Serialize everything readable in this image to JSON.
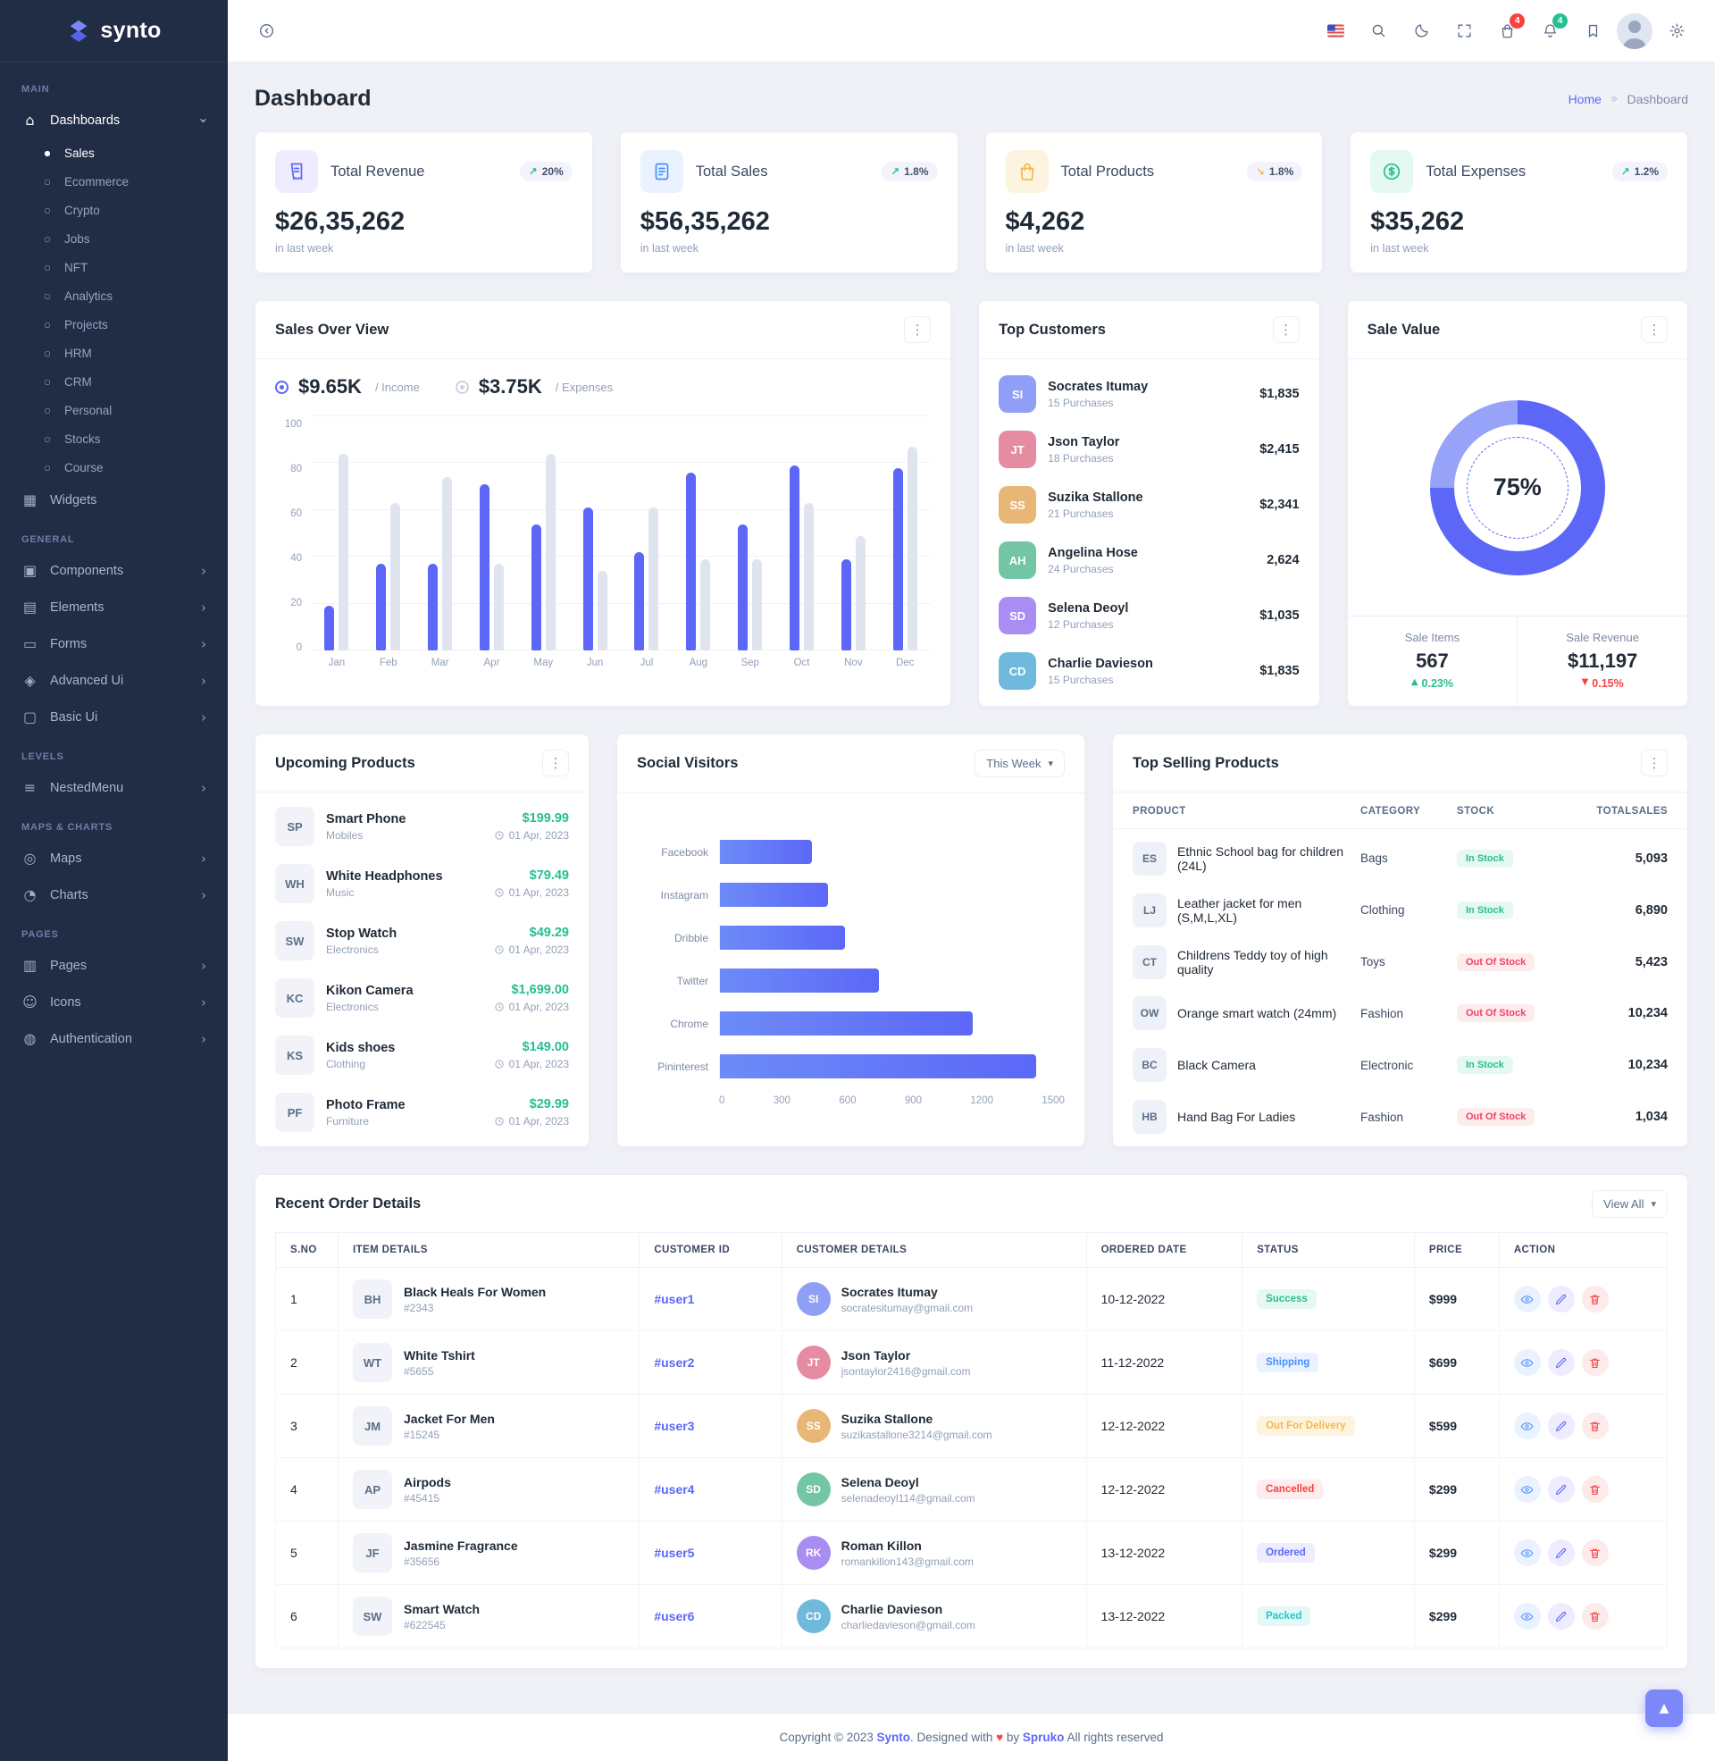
{
  "theme": {
    "primary": "#5c67f7",
    "success": "#26bf94",
    "danger": "#fb4242",
    "warning": "#f5b849",
    "info": "#478ffc",
    "teal": "#29c7c7",
    "sidebar_bg": "#212c45",
    "body_bg": "#f0f1f7"
  },
  "brand": {
    "name": "synto"
  },
  "topbar": {
    "cart_badge": "4",
    "bell_badge": "4"
  },
  "page": {
    "title": "Dashboard",
    "breadcrumb": {
      "home": "Home",
      "sep": "»",
      "current": "Dashboard"
    }
  },
  "icon_glyphs": {
    "home-icon": "⌂",
    "widgets-icon": "▦",
    "components-icon": "▣",
    "elements-icon": "▤",
    "forms-icon": "▭",
    "advanced-ui-icon": "◈",
    "basic-ui-icon": "▢",
    "nested-menu-icon": "≡",
    "maps-icon": "◎",
    "charts-icon": "◔",
    "pages-icon": "▥",
    "icons-icon": "☺",
    "auth-icon": "◍",
    "kebab-icon": "⋮",
    "chevron-right-icon": "›",
    "chevron-down-icon": "▾",
    "bullet-icon": "○",
    "bullet-active-icon": "●",
    "caret-up-icon": "▲",
    "caret-down-icon": "▼",
    "arrow-up-icon": "▲"
  },
  "sidebar": {
    "sections": [
      {
        "caption": "MAIN",
        "items": [
          {
            "label": "Dashboards",
            "icon": "home-icon",
            "chevron": "down",
            "active": true,
            "children": [
              {
                "label": "Sales",
                "active": true
              },
              {
                "label": "Ecommerce"
              },
              {
                "label": "Crypto"
              },
              {
                "label": "Jobs"
              },
              {
                "label": "NFT"
              },
              {
                "label": "Analytics"
              },
              {
                "label": "Projects"
              },
              {
                "label": "HRM"
              },
              {
                "label": "CRM"
              },
              {
                "label": "Personal"
              },
              {
                "label": "Stocks"
              },
              {
                "label": "Course"
              }
            ]
          },
          {
            "label": "Widgets",
            "icon": "widgets-icon"
          }
        ]
      },
      {
        "caption": "GENERAL",
        "items": [
          {
            "label": "Components",
            "icon": "components-icon",
            "chevron": "right"
          },
          {
            "label": "Elements",
            "icon": "elements-icon",
            "chevron": "right"
          },
          {
            "label": "Forms",
            "icon": "forms-icon",
            "chevron": "right"
          },
          {
            "label": "Advanced Ui",
            "icon": "advanced-ui-icon",
            "chevron": "right"
          },
          {
            "label": "Basic Ui",
            "icon": "basic-ui-icon",
            "chevron": "right"
          }
        ]
      },
      {
        "caption": "LEVELS",
        "items": [
          {
            "label": "NestedMenu",
            "icon": "nested-menu-icon",
            "chevron": "right"
          }
        ]
      },
      {
        "caption": "MAPS & CHARTS",
        "items": [
          {
            "label": "Maps",
            "icon": "maps-icon",
            "chevron": "right"
          },
          {
            "label": "Charts",
            "icon": "charts-icon",
            "chevron": "right"
          }
        ]
      },
      {
        "caption": "PAGES",
        "items": [
          {
            "label": "Pages",
            "icon": "pages-icon",
            "chevron": "right"
          },
          {
            "label": "Icons",
            "icon": "icons-icon",
            "chevron": "right"
          },
          {
            "label": "Authentication",
            "icon": "auth-icon",
            "chevron": "right"
          }
        ]
      }
    ]
  },
  "stat_cards": [
    {
      "title": "Total Revenue",
      "value": "$26,35,262",
      "period": "in last week",
      "change": "20%",
      "arrow": "↗",
      "trend": "up",
      "icon": "revenue-icon",
      "icon_bg": "#eeecfe",
      "icon_fg": "#5c67f7"
    },
    {
      "title": "Total Sales",
      "value": "$56,35,262",
      "period": "in last week",
      "change": "1.8%",
      "arrow": "↗",
      "trend": "up",
      "icon": "sales-icon",
      "icon_bg": "#e9f2fe",
      "icon_fg": "#478ffc"
    },
    {
      "title": "Total Products",
      "value": "$4,262",
      "period": "in last week",
      "change": "1.8%",
      "arrow": "↘",
      "trend": "down",
      "icon": "products-icon",
      "icon_bg": "#fdf4e0",
      "icon_fg": "#f5b849"
    },
    {
      "title": "Total Expenses",
      "value": "$35,262",
      "period": "in last week",
      "change": "1.2%",
      "arrow": "↗",
      "trend": "up",
      "icon": "expenses-icon",
      "icon_bg": "#e6f8f2",
      "icon_fg": "#26bf94"
    }
  ],
  "sales_overview": {
    "title": "Sales Over View",
    "income_value": "$9.65K",
    "income_label": "/ Income",
    "expenses_value": "$3.75K",
    "expenses_label": "/ Expenses",
    "chart_data": {
      "type": "bar",
      "categories": [
        "Jan",
        "Feb",
        "Mar",
        "Apr",
        "May",
        "Jun",
        "Jul",
        "Aug",
        "Sep",
        "Oct",
        "Nov",
        "Dec"
      ],
      "series": [
        {
          "name": "Income",
          "values": [
            19,
            37,
            37,
            71,
            54,
            61,
            42,
            76,
            54,
            79,
            39,
            78
          ]
        },
        {
          "name": "Expenses",
          "values": [
            84,
            63,
            74,
            37,
            84,
            34,
            61,
            39,
            39,
            63,
            49,
            87
          ]
        }
      ],
      "ylim": [
        0,
        100
      ],
      "yticks": [
        0,
        20,
        40,
        60,
        80,
        100
      ]
    }
  },
  "top_customers": {
    "title": "Top Customers",
    "items": [
      {
        "name": "Socrates Itumay",
        "purchases": "15 Purchases",
        "amount": "$1,835",
        "initials": "SI"
      },
      {
        "name": "Json Taylor",
        "purchases": "18 Purchases",
        "amount": "$2,415",
        "initials": "JT"
      },
      {
        "name": "Suzika Stallone",
        "purchases": "21 Purchases",
        "amount": "$2,341",
        "initials": "SS"
      },
      {
        "name": "Angelina Hose",
        "purchases": "24 Purchases",
        "amount": "2,624",
        "initials": "AH"
      },
      {
        "name": "Selena Deoyl",
        "purchases": "12 Purchases",
        "amount": "$1,035",
        "initials": "SD"
      },
      {
        "name": "Charlie Davieson",
        "purchases": "15 Purchases",
        "amount": "$1,835",
        "initials": "CD"
      }
    ]
  },
  "sale_value": {
    "title": "Sale Value",
    "percent": 75,
    "percent_label": "75%",
    "items_label": "Sale Items",
    "items_value": "567",
    "items_change": "0.23%",
    "revenue_label": "Sale Revenue",
    "revenue_value": "$11,197",
    "revenue_change": "0.15%",
    "chart_data": {
      "type": "pie",
      "categories": [
        "Completed",
        "Remaining"
      ],
      "values": [
        75,
        25
      ]
    }
  },
  "upcoming_products": {
    "title": "Upcoming Products",
    "items": [
      {
        "name": "Smart Phone",
        "category": "Mobiles",
        "price": "$199.99",
        "date": "01 Apr, 2023",
        "initials": "SP"
      },
      {
        "name": "White Headphones",
        "category": "Music",
        "price": "$79.49",
        "date": "01 Apr, 2023",
        "initials": "WH"
      },
      {
        "name": "Stop Watch",
        "category": "Electronics",
        "price": "$49.29",
        "date": "01 Apr, 2023",
        "initials": "SW"
      },
      {
        "name": "Kikon Camera",
        "category": "Electronics",
        "price": "$1,699.00",
        "date": "01 Apr, 2023",
        "initials": "KC"
      },
      {
        "name": "Kids shoes",
        "category": "Clothing",
        "price": "$149.00",
        "date": "01 Apr, 2023",
        "initials": "KS"
      },
      {
        "name": "Photo Frame",
        "category": "Furniture",
        "price": "$29.99",
        "date": "01 Apr, 2023",
        "initials": "PF"
      }
    ]
  },
  "social_visitors": {
    "title": "Social Visitors",
    "filter": "This Week",
    "chart_data": {
      "type": "bar",
      "orientation": "horizontal",
      "categories": [
        "Facebook",
        "Instagram",
        "Dribble",
        "Twitter",
        "Chrome",
        "Pininterest"
      ],
      "values": [
        400,
        470,
        545,
        690,
        1100,
        1375
      ],
      "xlim": [
        0,
        1500
      ],
      "xticks": [
        0,
        300,
        600,
        900,
        1200,
        1500
      ]
    }
  },
  "top_selling": {
    "title": "Top Selling Products",
    "columns": [
      "PRODUCT",
      "CATEGORY",
      "STOCK",
      "TOTALSALES"
    ],
    "rows": [
      {
        "name": "Ethnic School bag for children (24L)",
        "category": "Bags",
        "stock": "In Stock",
        "stock_class": "instock",
        "total": "5,093",
        "initials": "ES"
      },
      {
        "name": "Leather jacket for men (S,M,L,XL)",
        "category": "Clothing",
        "stock": "In Stock",
        "stock_class": "instock",
        "total": "6,890",
        "initials": "LJ"
      },
      {
        "name": "Childrens Teddy toy of high quality",
        "category": "Toys",
        "stock": "Out Of Stock",
        "stock_class": "outstock",
        "total": "5,423",
        "initials": "CT"
      },
      {
        "name": "Orange smart watch (24mm)",
        "category": "Fashion",
        "stock": "Out Of Stock",
        "stock_class": "outstock",
        "total": "10,234",
        "initials": "OW"
      },
      {
        "name": "Black Camera",
        "category": "Electronic",
        "stock": "In Stock",
        "stock_class": "instock",
        "total": "10,234",
        "initials": "BC"
      },
      {
        "name": "Hand Bag For Ladies",
        "category": "Fashion",
        "stock": "Out Of Stock",
        "stock_class": "outstock",
        "total": "1,034",
        "initials": "HB"
      }
    ]
  },
  "recent_orders": {
    "title": "Recent Order Details",
    "view_all": "View All",
    "columns": [
      "S.NO",
      "ITEM DETAILS",
      "CUSTOMER ID",
      "CUSTOMER DETAILS",
      "ORDERED DATE",
      "STATUS",
      "PRICE",
      "ACTION"
    ],
    "rows": [
      {
        "sno": "1",
        "item": "Black Heals For Women",
        "item_id": "#2343",
        "item_initials": "BH",
        "customer_id": "#user1",
        "customer": "Socrates Itumay",
        "cust_initials": "SI",
        "email": "socratesitumay@gmail.com",
        "date": "10-12-2022",
        "status": "Success",
        "status_class": "st-success",
        "price": "$999"
      },
      {
        "sno": "2",
        "item": "White Tshirt",
        "item_id": "#5655",
        "item_initials": "WT",
        "customer_id": "#user2",
        "customer": "Json Taylor",
        "cust_initials": "JT",
        "email": "jsontaylor2416@gmail.com",
        "date": "11-12-2022",
        "status": "Shipping",
        "status_class": "st-info",
        "price": "$699"
      },
      {
        "sno": "3",
        "item": "Jacket For Men",
        "item_id": "#15245",
        "item_initials": "JM",
        "customer_id": "#user3",
        "customer": "Suzika Stallone",
        "cust_initials": "SS",
        "email": "suzikastallone3214@gmail.com",
        "date": "12-12-2022",
        "status": "Out For Delivery",
        "status_class": "st-warn",
        "price": "$599"
      },
      {
        "sno": "4",
        "item": "Airpods",
        "item_id": "#45415",
        "item_initials": "AP",
        "customer_id": "#user4",
        "customer": "Selena Deoyl",
        "cust_initials": "SD",
        "email": "selenadeoyl114@gmail.com",
        "date": "12-12-2022",
        "status": "Cancelled",
        "status_class": "st-danger",
        "price": "$299"
      },
      {
        "sno": "5",
        "item": "Jasmine Fragrance",
        "item_id": "#35656",
        "item_initials": "JF",
        "customer_id": "#user5",
        "customer": "Roman Killon",
        "cust_initials": "RK",
        "email": "romankillon143@gmail.com",
        "date": "13-12-2022",
        "status": "Ordered",
        "status_class": "st-primary",
        "price": "$299"
      },
      {
        "sno": "6",
        "item": "Smart Watch",
        "item_id": "#622545",
        "item_initials": "SW",
        "customer_id": "#user6",
        "customer": "Charlie Davieson",
        "cust_initials": "CD",
        "email": "charliedavieson@gmail.com",
        "date": "13-12-2022",
        "status": "Packed",
        "status_class": "st-teal",
        "price": "$299"
      }
    ]
  },
  "footer": {
    "copyright": "Copyright © 2023",
    "brand": "Synto",
    "designed": ". Designed with",
    "heart": "♥",
    "by": "by",
    "agency": "Spruko",
    "rights": "All rights reserved"
  }
}
